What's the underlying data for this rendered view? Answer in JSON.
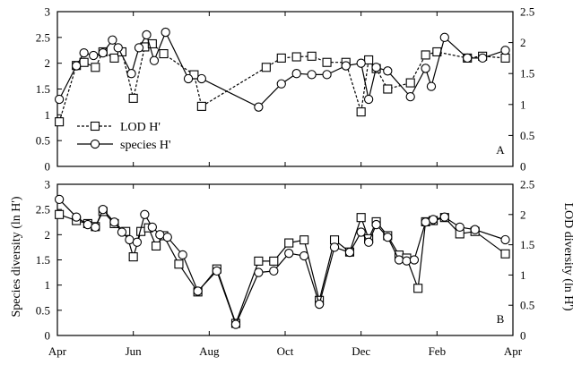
{
  "chart_data": [
    {
      "type": "line",
      "panel_label": "A",
      "xlabel": "",
      "ylabel": "Species diversity (ln H')",
      "y2label": "LOD diversity (ln H')",
      "x_ticks": [
        {
          "x": 0,
          "label": "Apr"
        },
        {
          "x": 2,
          "label": "Jun"
        },
        {
          "x": 4,
          "label": "Aug"
        },
        {
          "x": 6,
          "label": "Oct"
        },
        {
          "x": 8,
          "label": "Dec"
        },
        {
          "x": 10,
          "label": "Feb"
        },
        {
          "x": 12,
          "label": "Apr"
        }
      ],
      "xlim": [
        0,
        12
      ],
      "ylim": [
        0,
        3
      ],
      "y_ticks": [
        0,
        0.5,
        1,
        1.5,
        2,
        2.5,
        3
      ],
      "y2lim": [
        0,
        2.5
      ],
      "y2_ticks": [
        0,
        0.5,
        1,
        1.5,
        2,
        2.5
      ],
      "legend": {
        "position": "lower-left",
        "entries": [
          {
            "series": 0,
            "label": "LOD H'"
          },
          {
            "series": 1,
            "label": "species H'"
          }
        ]
      },
      "series": [
        {
          "name": "LOD H'",
          "axis": "right",
          "marker": "square",
          "line": "dashed",
          "x": [
            0.05,
            0.5,
            0.7,
            1.0,
            1.2,
            1.5,
            1.7,
            2.0,
            2.3,
            2.5,
            2.8,
            3.6,
            3.8,
            5.5,
            5.9,
            6.3,
            6.7,
            7.1,
            7.6,
            8.0,
            8.2,
            8.4,
            8.7,
            9.3,
            9.7,
            10.0,
            10.8,
            11.2,
            11.8
          ],
          "y": [
            0.72,
            1.63,
            1.68,
            1.6,
            1.85,
            1.75,
            1.85,
            1.1,
            1.93,
            1.98,
            1.82,
            1.48,
            0.97,
            1.6,
            1.75,
            1.77,
            1.78,
            1.68,
            1.68,
            0.88,
            1.72,
            1.58,
            1.25,
            1.35,
            1.8,
            1.85,
            1.75,
            1.78,
            1.75
          ]
        },
        {
          "name": "species H'",
          "axis": "left",
          "marker": "circle",
          "line": "solid",
          "x": [
            0.05,
            0.5,
            0.7,
            0.95,
            1.2,
            1.45,
            1.6,
            1.95,
            2.15,
            2.35,
            2.55,
            2.85,
            3.45,
            3.8,
            5.3,
            5.9,
            6.3,
            6.7,
            7.1,
            7.6,
            8.0,
            8.2,
            8.4,
            8.7,
            9.3,
            9.7,
            9.85,
            10.2,
            10.8,
            11.2,
            11.8
          ],
          "y": [
            1.3,
            1.95,
            2.2,
            2.15,
            2.2,
            2.45,
            2.3,
            1.8,
            2.3,
            2.55,
            2.05,
            2.6,
            1.7,
            1.7,
            1.15,
            1.6,
            1.8,
            1.78,
            1.78,
            1.95,
            2.0,
            1.3,
            1.92,
            1.85,
            1.35,
            1.9,
            1.55,
            2.5,
            2.1,
            2.1,
            2.25
          ]
        }
      ]
    },
    {
      "type": "line",
      "panel_label": "B",
      "xlabel": "",
      "ylabel": "Species diversity (ln H')",
      "y2label": "LOD diversity (ln H')",
      "x_ticks": [
        {
          "x": 0,
          "label": "Apr"
        },
        {
          "x": 2,
          "label": "Jun"
        },
        {
          "x": 4,
          "label": "Aug"
        },
        {
          "x": 6,
          "label": "Oct"
        },
        {
          "x": 8,
          "label": "Dec"
        },
        {
          "x": 10,
          "label": "Feb"
        },
        {
          "x": 12,
          "label": "Apr"
        }
      ],
      "xlim": [
        0,
        12
      ],
      "ylim": [
        0,
        3
      ],
      "y_ticks": [
        0,
        0.5,
        1,
        1.5,
        2,
        2.5,
        3
      ],
      "y2lim": [
        0,
        2.5
      ],
      "y2_ticks": [
        0,
        0.5,
        1,
        1.5,
        2,
        2.5
      ],
      "series": [
        {
          "name": "LOD H'",
          "axis": "right",
          "marker": "square",
          "line": "solid",
          "x": [
            0.05,
            0.5,
            0.8,
            1.0,
            1.2,
            1.5,
            1.8,
            2.0,
            2.2,
            2.4,
            2.6,
            2.8,
            3.2,
            3.7,
            4.2,
            4.7,
            5.3,
            5.7,
            6.1,
            6.5,
            6.9,
            7.3,
            7.7,
            8.0,
            8.2,
            8.4,
            8.7,
            9.0,
            9.2,
            9.5,
            9.7,
            9.9,
            10.2,
            10.6,
            11.0,
            11.8
          ],
          "y": [
            2.0,
            1.9,
            1.85,
            1.8,
            2.05,
            1.85,
            1.72,
            1.3,
            1.72,
            1.78,
            1.48,
            1.65,
            1.18,
            0.72,
            1.1,
            0.2,
            1.23,
            1.23,
            1.53,
            1.58,
            0.58,
            1.58,
            1.38,
            1.95,
            1.6,
            1.88,
            1.65,
            1.33,
            1.28,
            0.78,
            1.88,
            1.9,
            1.95,
            1.68,
            1.72,
            1.35
          ]
        },
        {
          "name": "species H'",
          "axis": "left",
          "marker": "circle",
          "line": "solid",
          "x": [
            0.05,
            0.5,
            0.8,
            1.0,
            1.2,
            1.5,
            1.7,
            1.9,
            2.1,
            2.3,
            2.5,
            2.7,
            2.9,
            3.3,
            3.7,
            4.2,
            4.7,
            5.3,
            5.7,
            6.1,
            6.5,
            6.9,
            7.3,
            7.7,
            8.0,
            8.2,
            8.4,
            8.7,
            9.0,
            9.2,
            9.4,
            9.7,
            9.9,
            10.2,
            10.6,
            11.0,
            11.8
          ],
          "y": [
            2.7,
            2.35,
            2.2,
            2.15,
            2.5,
            2.25,
            2.05,
            1.9,
            1.85,
            2.4,
            2.15,
            2.0,
            1.95,
            1.6,
            0.88,
            1.28,
            0.22,
            1.25,
            1.28,
            1.63,
            1.58,
            0.62,
            1.75,
            1.65,
            2.05,
            1.85,
            2.2,
            1.95,
            1.5,
            1.48,
            1.5,
            2.25,
            2.3,
            2.35,
            2.15,
            2.1,
            1.9
          ]
        }
      ]
    }
  ]
}
